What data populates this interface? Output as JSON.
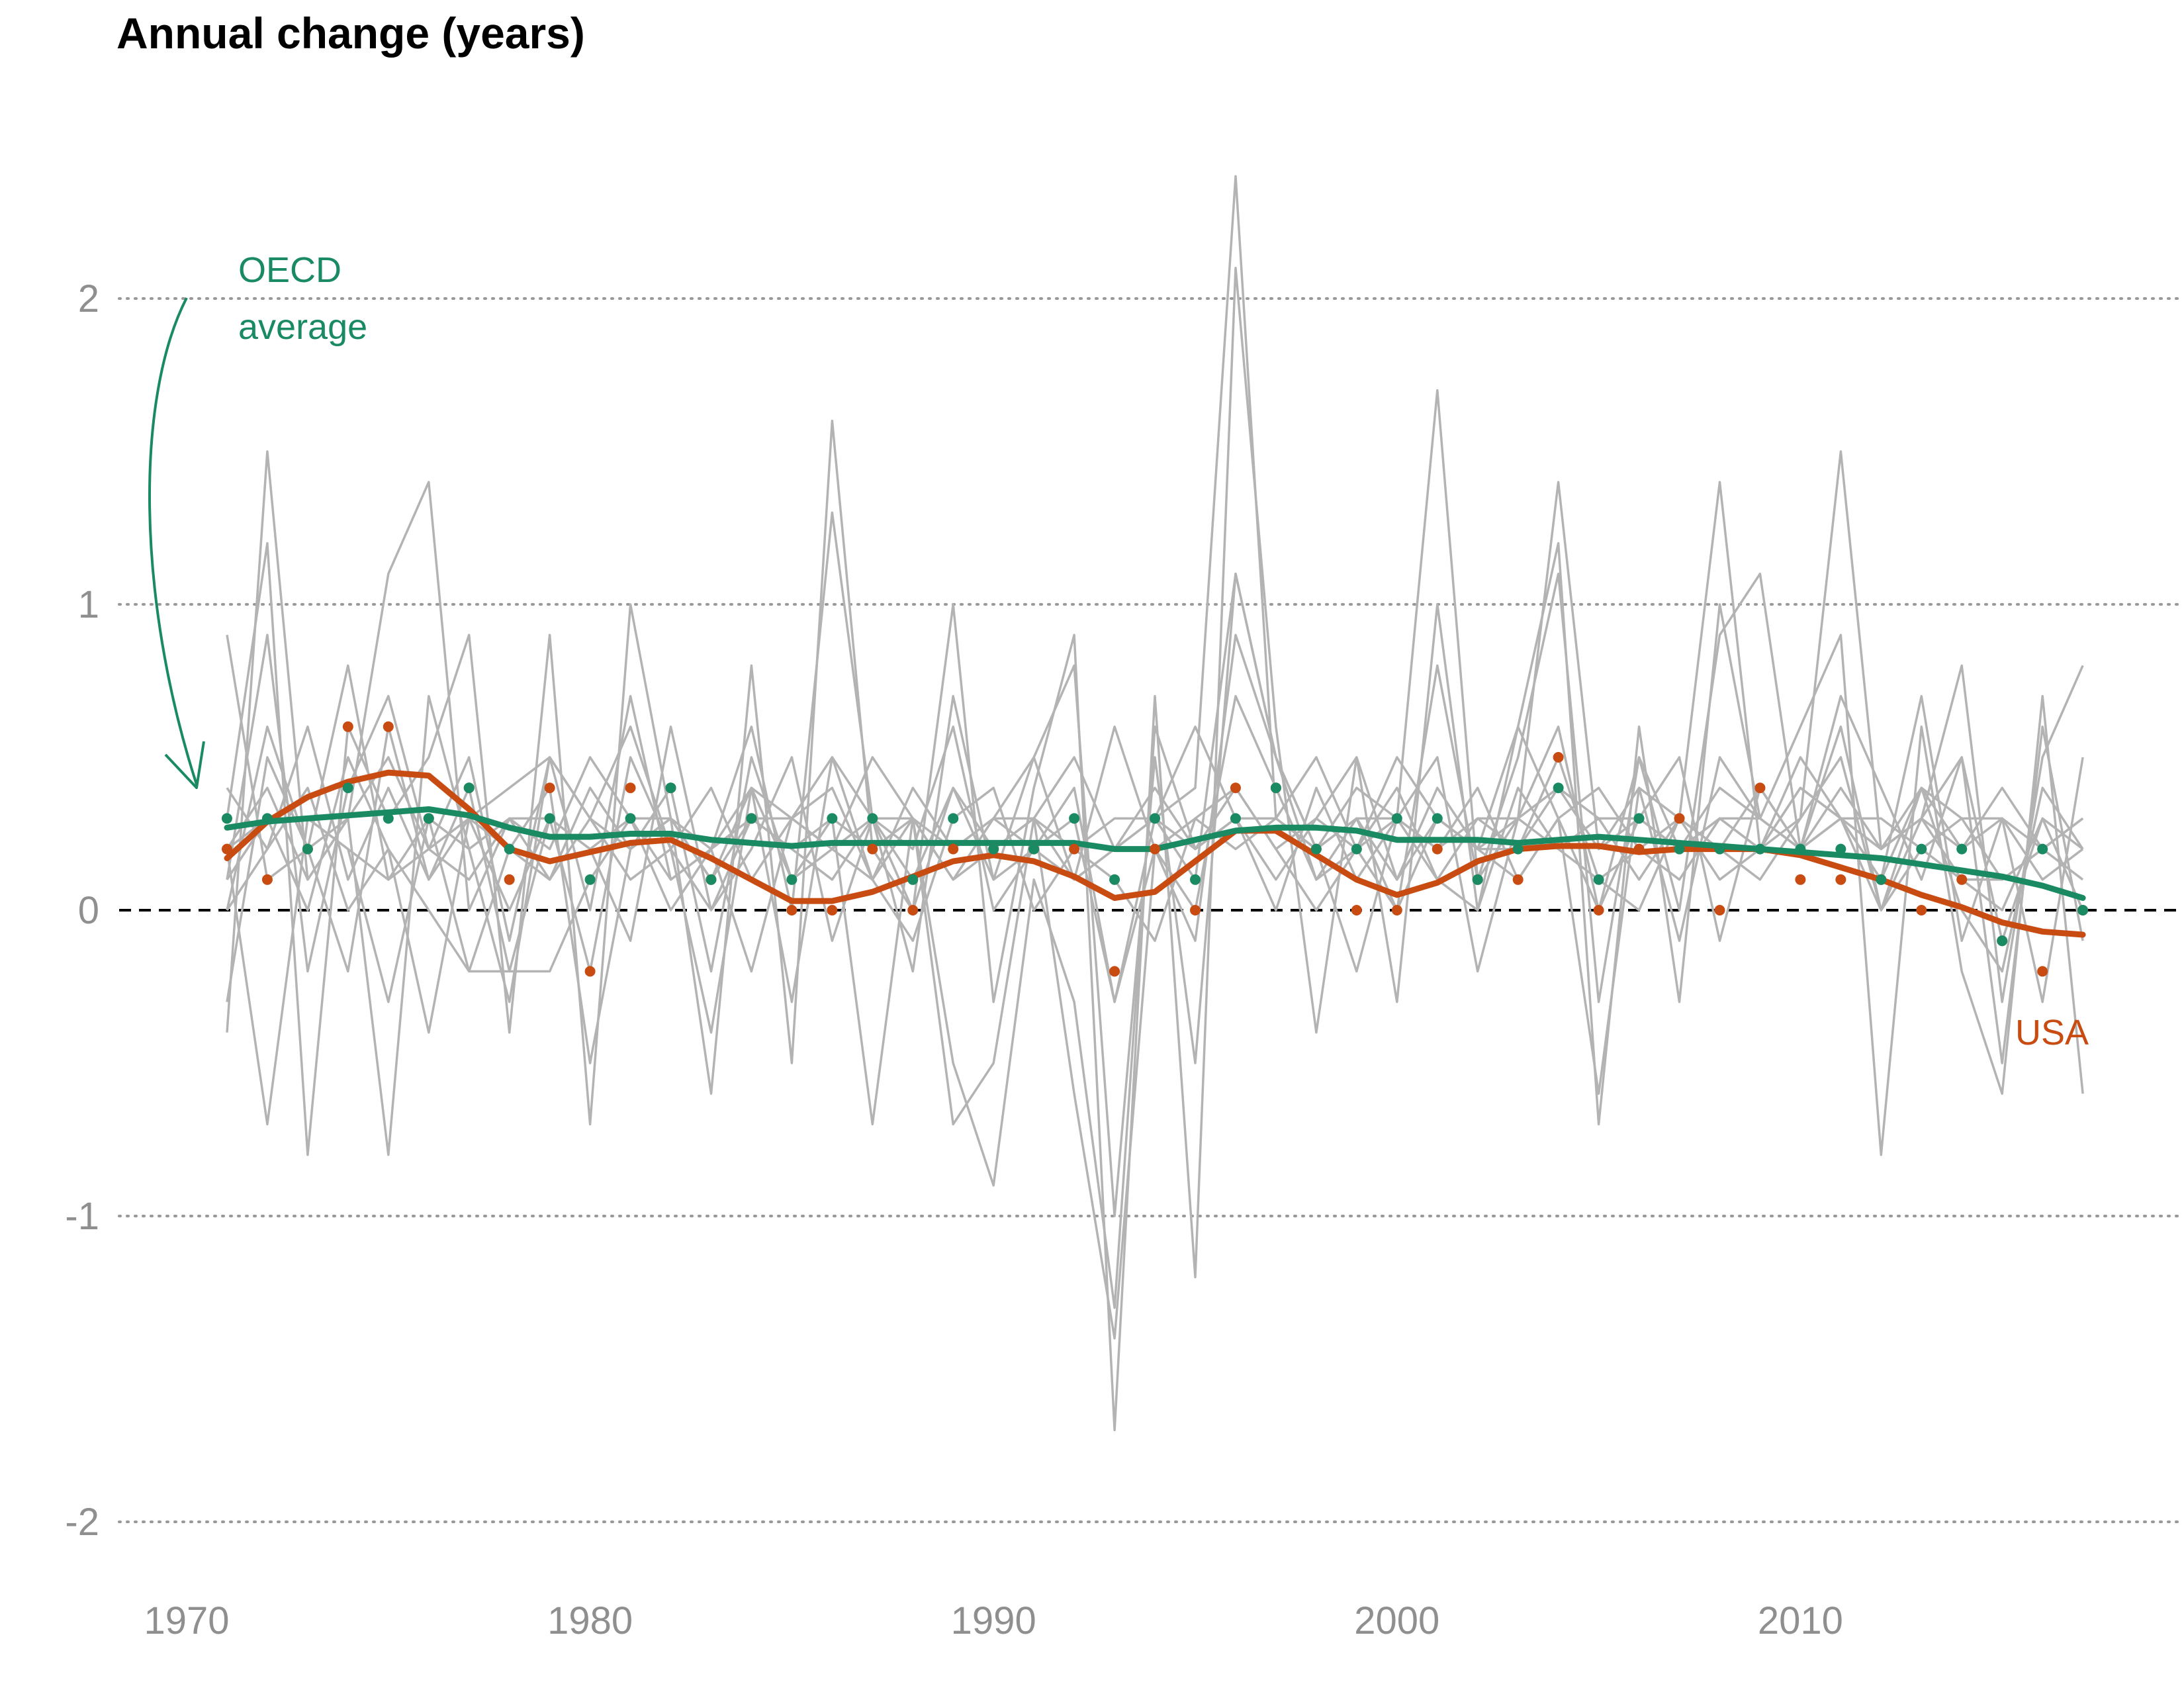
{
  "chart_data": {
    "type": "line",
    "title": "Annual change (years)",
    "xlabel": "",
    "ylabel": "",
    "xlim": [
      1968,
      2019
    ],
    "ylim": [
      -2.25,
      2.55
    ],
    "grid": "horizontal dotted",
    "x_ticks": [
      "1970",
      "1980",
      "1990",
      "2000",
      "2010"
    ],
    "y_ticks": [
      "2",
      "1",
      "0",
      "-1",
      "-2"
    ],
    "reference_line": 0,
    "colors": {
      "background_series": "#b3b3b3",
      "oecd": "#1a8a63",
      "usa": "#c84b12",
      "grid": "#999999",
      "zero_line": "#000000"
    },
    "annotations": {
      "oecd_label_line1": "OECD",
      "oecd_label_line2": "average",
      "usa_label": "USA"
    },
    "oecd_points": {
      "x": [
        1971,
        1972,
        1973,
        1974,
        1975,
        1976,
        1977,
        1978,
        1979,
        1980,
        1981,
        1982,
        1983,
        1984,
        1985,
        1986,
        1987,
        1988,
        1989,
        1990,
        1991,
        1992,
        1993,
        1994,
        1995,
        1996,
        1997,
        1998,
        1999,
        2000,
        2001,
        2002,
        2003,
        2004,
        2005,
        2006,
        2007,
        2008,
        2009,
        2010,
        2011,
        2012,
        2013,
        2014,
        2015,
        2016,
        2017
      ],
      "values": [
        0.3,
        0.3,
        0.2,
        0.4,
        0.3,
        0.3,
        0.4,
        0.2,
        0.3,
        0.1,
        0.3,
        0.4,
        0.1,
        0.3,
        0.1,
        0.3,
        0.3,
        0.1,
        0.3,
        0.2,
        0.2,
        0.3,
        0.1,
        0.3,
        0.1,
        0.3,
        0.4,
        0.2,
        0.2,
        0.3,
        0.3,
        0.1,
        0.2,
        0.4,
        0.1,
        0.3,
        0.2,
        0.2,
        0.2,
        0.2,
        0.2,
        0.1,
        0.2,
        0.2,
        -0.1,
        0.2,
        0.0
      ]
    },
    "usa_points": {
      "x": [
        1971,
        1972,
        1973,
        1974,
        1975,
        1976,
        1977,
        1978,
        1979,
        1980,
        1981,
        1982,
        1983,
        1984,
        1985,
        1986,
        1987,
        1988,
        1989,
        1990,
        1991,
        1992,
        1993,
        1994,
        1995,
        1996,
        1997,
        1998,
        1999,
        2000,
        2001,
        2002,
        2003,
        2004,
        2005,
        2006,
        2007,
        2008,
        2009,
        2010,
        2011,
        2012,
        2013,
        2014,
        2015,
        2016,
        2017
      ],
      "values": [
        0.2,
        0.1,
        0.2,
        0.6,
        0.6,
        0.3,
        0.4,
        0.1,
        0.4,
        -0.2,
        0.4,
        0.4,
        0.1,
        0.3,
        0.0,
        0.0,
        0.2,
        0.0,
        0.2,
        0.2,
        0.2,
        0.2,
        -0.2,
        0.2,
        0.0,
        0.4,
        0.4,
        0.2,
        0.0,
        0.0,
        0.2,
        0.1,
        0.1,
        0.5,
        0.0,
        0.2,
        0.3,
        0.0,
        0.4,
        0.1,
        0.1,
        0.1,
        0.0,
        0.1,
        -0.1,
        -0.2,
        0.0
      ]
    },
    "series": [
      {
        "name": "OECD average",
        "role": "smoothed",
        "x": [
          1971,
          1972,
          1973,
          1974,
          1975,
          1976,
          1977,
          1978,
          1979,
          1980,
          1981,
          1982,
          1983,
          1984,
          1985,
          1986,
          1987,
          1988,
          1989,
          1990,
          1991,
          1992,
          1993,
          1994,
          1995,
          1996,
          1997,
          1998,
          1999,
          2000,
          2001,
          2002,
          2003,
          2004,
          2005,
          2006,
          2007,
          2008,
          2009,
          2010,
          2011,
          2012,
          2013,
          2014,
          2015,
          2016,
          2017
        ],
        "values": [
          0.27,
          0.29,
          0.3,
          0.31,
          0.32,
          0.33,
          0.31,
          0.27,
          0.24,
          0.24,
          0.25,
          0.25,
          0.23,
          0.22,
          0.21,
          0.22,
          0.22,
          0.22,
          0.22,
          0.22,
          0.22,
          0.22,
          0.2,
          0.2,
          0.23,
          0.26,
          0.27,
          0.27,
          0.26,
          0.23,
          0.23,
          0.23,
          0.22,
          0.23,
          0.24,
          0.23,
          0.22,
          0.21,
          0.2,
          0.19,
          0.18,
          0.17,
          0.15,
          0.13,
          0.11,
          0.08,
          0.04
        ]
      },
      {
        "name": "USA",
        "role": "smoothed",
        "x": [
          1971,
          1972,
          1973,
          1974,
          1975,
          1976,
          1977,
          1978,
          1979,
          1980,
          1981,
          1982,
          1983,
          1984,
          1985,
          1986,
          1987,
          1988,
          1989,
          1990,
          1991,
          1992,
          1993,
          1994,
          1995,
          1996,
          1997,
          1998,
          1999,
          2000,
          2001,
          2002,
          2003,
          2004,
          2005,
          2006,
          2007,
          2008,
          2009,
          2010,
          2011,
          2012,
          2013,
          2014,
          2015,
          2016,
          2017
        ],
        "values": [
          0.17,
          0.29,
          0.37,
          0.42,
          0.45,
          0.44,
          0.33,
          0.2,
          0.16,
          0.19,
          0.22,
          0.23,
          0.17,
          0.1,
          0.03,
          0.03,
          0.06,
          0.11,
          0.16,
          0.18,
          0.16,
          0.11,
          0.04,
          0.06,
          0.16,
          0.26,
          0.26,
          0.18,
          0.1,
          0.05,
          0.09,
          0.16,
          0.2,
          0.21,
          0.21,
          0.19,
          0.2,
          0.2,
          0.2,
          0.18,
          0.14,
          0.1,
          0.05,
          0.01,
          -0.04,
          -0.07,
          -0.08
        ]
      }
    ],
    "background_series_x_start": 1971,
    "background_series": [
      [
        0.9,
        0.1,
        0.2,
        0.8,
        0.1,
        0.2,
        0.3,
        0.4,
        0.5,
        0.3,
        0.2,
        0.3,
        0.1,
        0.3,
        0.2,
        0.3,
        0.2,
        0.3,
        0.1,
        0.2,
        0.3,
        0.5,
        0.2,
        0.3,
        0.1,
        1.1,
        0.5,
        0.2,
        0.3,
        0.1,
        0.3,
        0.2,
        0.3,
        0.4,
        0.2,
        0.3,
        0.2,
        0.4,
        0.3,
        0.2,
        0.3,
        0.2,
        0.3,
        0.2,
        0.4,
        0.2,
        0.3
      ],
      [
        -0.4,
        1.5,
        0.1,
        0.3,
        1.1,
        1.4,
        0.0,
        0.3,
        0.1,
        0.3,
        0.6,
        0.2,
        0.4,
        0.1,
        0.3,
        0.5,
        0.3,
        0.1,
        0.4,
        0.2,
        0.3,
        0.1,
        0.2,
        0.3,
        0.4,
        2.4,
        0.3,
        0.2,
        0.4,
        0.3,
        1.7,
        0.1,
        0.3,
        1.4,
        0.2,
        0.4,
        0.3,
        1.4,
        0.2,
        0.3,
        1.5,
        0.2,
        0.3,
        0.8,
        -0.3,
        0.5,
        0.8
      ],
      [
        0.3,
        1.2,
        -0.8,
        0.6,
        0.3,
        0.5,
        0.9,
        -0.4,
        0.9,
        -0.7,
        1.0,
        0.3,
        -0.6,
        0.8,
        -0.5,
        1.6,
        0.2,
        0.0,
        1.0,
        -0.3,
        0.4,
        0.9,
        -1.7,
        0.7,
        -1.2,
        2.1,
        0.6,
        -0.4,
        0.5,
        -0.3,
        1.0,
        0.0,
        0.6,
        1.2,
        -0.7,
        0.6,
        -0.3,
        1.0,
        0.3,
        0.6,
        0.9,
        -0.8,
        0.6,
        -0.2,
        -0.6,
        0.7,
        -0.6
      ],
      [
        0.1,
        0.9,
        -0.2,
        0.4,
        0.7,
        0.2,
        0.5,
        -0.1,
        0.5,
        0.0,
        0.7,
        0.1,
        0.2,
        0.6,
        0.0,
        1.3,
        0.3,
        -0.2,
        0.7,
        0.1,
        0.5,
        0.8,
        -1.0,
        0.5,
        -0.5,
        1.1,
        0.5,
        0.1,
        0.3,
        0.0,
        0.8,
        0.1,
        0.5,
        1.1,
        -0.3,
        0.5,
        0.0,
        0.9,
        1.1,
        0.2,
        0.6,
        0.0,
        0.4,
        0.0,
        -0.2,
        0.4,
        0.2
      ],
      [
        0.2,
        -0.7,
        0.3,
        0.2,
        -0.3,
        0.3,
        -0.2,
        0.2,
        0.4,
        -0.5,
        0.2,
        0.4,
        -0.2,
        0.5,
        0.1,
        0.3,
        -0.7,
        0.3,
        -0.5,
        -0.9,
        0.1,
        -0.3,
        -1.3,
        0.6,
        0.2,
        0.4,
        0.2,
        0.3,
        0.5,
        0.1,
        0.4,
        0.2,
        0.6,
        0.3,
        0.0,
        0.5,
        0.2,
        0.3,
        0.2,
        0.5,
        0.3,
        0.1,
        0.7,
        -0.1,
        0.3,
        -0.3,
        0.5
      ],
      [
        0.0,
        0.6,
        0.2,
        0.3,
        -0.8,
        0.7,
        0.2,
        -0.3,
        0.5,
        0.3,
        0.1,
        0.2,
        -0.4,
        0.4,
        -0.3,
        0.5,
        0.1,
        0.3,
        -0.7,
        -0.5,
        0.3,
        -0.6,
        -1.4,
        0.2,
        -0.1,
        0.9,
        0.5,
        0.2,
        -0.2,
        0.3,
        0.2,
        0.4,
        0.1,
        0.3,
        -0.6,
        0.4,
        -0.1,
        0.5,
        0.3,
        0.2,
        0.7,
        0.4,
        0.1,
        0.5,
        -0.5,
        0.6,
        -0.1
      ],
      [
        0.2,
        0.3,
        0.0,
        0.5,
        0.2,
        -0.4,
        0.3,
        0.0,
        0.3,
        -0.2,
        0.5,
        0.2,
        0.0,
        0.3,
        0.2,
        0.1,
        0.3,
        0.0,
        0.4,
        0.1,
        0.2,
        0.3,
        -0.3,
        0.2,
        0.0,
        0.7,
        0.4,
        0.1,
        0.2,
        0.0,
        0.3,
        0.2,
        0.2,
        0.5,
        0.1,
        0.2,
        0.1,
        0.3,
        0.2,
        0.4,
        0.3,
        0.0,
        0.3,
        0.1,
        0.1,
        0.2,
        0.1
      ],
      [
        0.4,
        0.2,
        0.6,
        0.1,
        0.4,
        0.1,
        0.3,
        0.2,
        0.1,
        0.4,
        0.2,
        0.3,
        0.1,
        0.4,
        0.1,
        0.2,
        0.5,
        0.3,
        0.1,
        0.3,
        0.2,
        0.1,
        0.6,
        0.2,
        0.3,
        0.2,
        0.3,
        0.5,
        0.2,
        0.4,
        0.1,
        0.3,
        0.2,
        0.4,
        0.3,
        0.1,
        0.3,
        0.2,
        0.4,
        0.2,
        0.3,
        0.1,
        0.4,
        0.2,
        0.3,
        0.1,
        0.2
      ],
      [
        -0.3,
        0.5,
        0.2,
        -0.2,
        0.6,
        0.1,
        0.4,
        -0.2,
        0.3,
        0.2,
        -0.1,
        0.6,
        0.0,
        0.2,
        0.5,
        -0.1,
        0.3,
        0.2,
        0.6,
        0.0,
        0.2,
        0.4,
        -0.3,
        0.3,
        0.6,
        0.3,
        0.0,
        0.4,
        0.1,
        0.3,
        0.5,
        -0.2,
        0.3,
        0.6,
        0.0,
        0.3,
        0.5,
        -0.1,
        0.4,
        0.2,
        0.4,
        0.2,
        0.3,
        0.5,
        -0.1,
        0.3,
        0.0
      ],
      [
        0.1,
        0.3,
        0.3,
        0.2,
        0.1,
        0.3,
        0.2,
        0.3,
        0.3,
        0.2,
        0.3,
        0.3,
        0.2,
        0.3,
        0.3,
        0.2,
        0.3,
        0.3,
        0.2,
        0.3,
        0.3,
        0.2,
        0.3,
        0.3,
        0.2,
        0.3,
        0.3,
        0.2,
        0.3,
        0.3,
        0.2,
        0.3,
        0.3,
        0.2,
        0.3,
        0.3,
        0.2,
        0.3,
        0.3,
        0.2,
        0.3,
        0.3,
        0.2,
        0.3,
        0.3,
        0.2,
        0.3
      ],
      [
        0.0,
        0.2,
        0.4,
        0.0,
        0.2,
        0.0,
        -0.2,
        -0.2,
        -0.2,
        0.1,
        0.3,
        0.0,
        0.2,
        -0.2,
        0.3,
        0.4,
        0.1,
        -0.1,
        0.3,
        0.4,
        0.0,
        0.2,
        0.1,
        -0.1,
        0.3,
        0.4,
        0.2,
        0.0,
        0.2,
        0.3,
        0.1,
        0.0,
        0.4,
        0.2,
        0.1,
        0.0,
        0.3,
        0.2,
        0.1,
        0.3,
        0.5,
        0.0,
        0.2,
        0.1,
        0.0,
        0.3,
        0.2
      ],
      [
        0.2,
        0.4,
        0.1,
        0.3,
        0.5,
        0.2,
        0.1,
        0.3,
        0.2,
        0.5,
        0.3,
        0.1,
        0.2,
        0.4,
        0.3,
        0.2,
        0.1,
        0.4,
        0.2,
        0.3,
        0.5,
        0.1,
        0.2,
        0.4,
        0.2,
        0.3,
        0.1,
        0.3,
        0.2,
        0.5,
        0.3,
        0.2,
        0.1,
        0.3,
        0.4,
        0.2,
        0.3,
        0.1,
        0.2,
        0.4,
        0.3,
        0.2,
        0.4,
        0.3,
        0.1,
        0.2,
        0.3
      ]
    ]
  }
}
